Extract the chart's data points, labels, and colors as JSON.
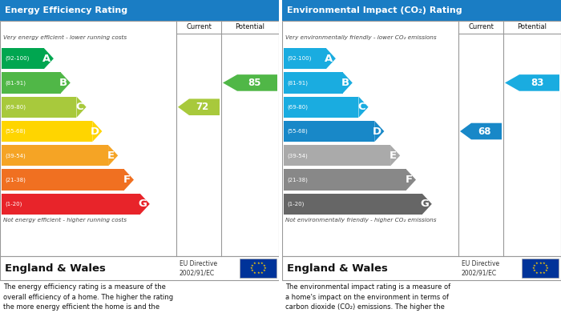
{
  "left_title": "Energy Efficiency Rating",
  "right_title": "Environmental Impact (CO₂) Rating",
  "header_bg": "#1a7dc4",
  "header_text_color": "#ffffff",
  "bands_epc": [
    {
      "label": "A",
      "range": "(92-100)",
      "wf": 0.295,
      "color": "#00a650"
    },
    {
      "label": "B",
      "range": "(81-91)",
      "wf": 0.39,
      "color": "#50b747"
    },
    {
      "label": "C",
      "range": "(69-80)",
      "wf": 0.48,
      "color": "#a8c93c"
    },
    {
      "label": "D",
      "range": "(55-68)",
      "wf": 0.57,
      "color": "#ffd500"
    },
    {
      "label": "E",
      "range": "(39-54)",
      "wf": 0.66,
      "color": "#f5a425"
    },
    {
      "label": "F",
      "range": "(21-38)",
      "wf": 0.75,
      "color": "#f07021"
    },
    {
      "label": "G",
      "range": "(1-20)",
      "wf": 0.84,
      "color": "#e8242a"
    }
  ],
  "bands_co2": [
    {
      "label": "A",
      "range": "(92-100)",
      "wf": 0.295,
      "color": "#1aace0"
    },
    {
      "label": "B",
      "range": "(81-91)",
      "wf": 0.39,
      "color": "#1aace0"
    },
    {
      "label": "C",
      "range": "(69-80)",
      "wf": 0.48,
      "color": "#1aace0"
    },
    {
      "label": "D",
      "range": "(55-68)",
      "wf": 0.57,
      "color": "#1888c8"
    },
    {
      "label": "E",
      "range": "(39-54)",
      "wf": 0.66,
      "color": "#aaaaaa"
    },
    {
      "label": "F",
      "range": "(21-38)",
      "wf": 0.75,
      "color": "#888888"
    },
    {
      "label": "G",
      "range": "(1-20)",
      "wf": 0.84,
      "color": "#666666"
    }
  ],
  "epc_current": 72,
  "epc_current_color": "#a8c93c",
  "epc_potential": 85,
  "epc_potential_color": "#50b747",
  "co2_current": 68,
  "co2_current_color": "#1888c8",
  "co2_potential": 83,
  "co2_potential_color": "#1aace0",
  "left_top_note": "Very energy efficient - lower running costs",
  "left_bottom_note": "Not energy efficient - higher running costs",
  "right_top_note": "Very environmentally friendly - lower CO₂ emissions",
  "right_bottom_note": "Not environmentally friendly - higher CO₂ emissions",
  "left_desc": "The energy efficiency rating is a measure of the\noverall efficiency of a home. The higher the rating\nthe more energy efficient the home is and the\nlower the fuel bills will be.",
  "right_desc": "The environmental impact rating is a measure of\na home's impact on the environment in terms of\ncarbon dioxide (CO₂) emissions. The higher the\nrating the less impact it has on the environment.",
  "outline_color": "#999999",
  "bg_color": "#ffffff",
  "band_ranges": [
    [
      92,
      100
    ],
    [
      81,
      91
    ],
    [
      69,
      80
    ],
    [
      55,
      68
    ],
    [
      39,
      54
    ],
    [
      21,
      38
    ],
    [
      1,
      20
    ]
  ]
}
